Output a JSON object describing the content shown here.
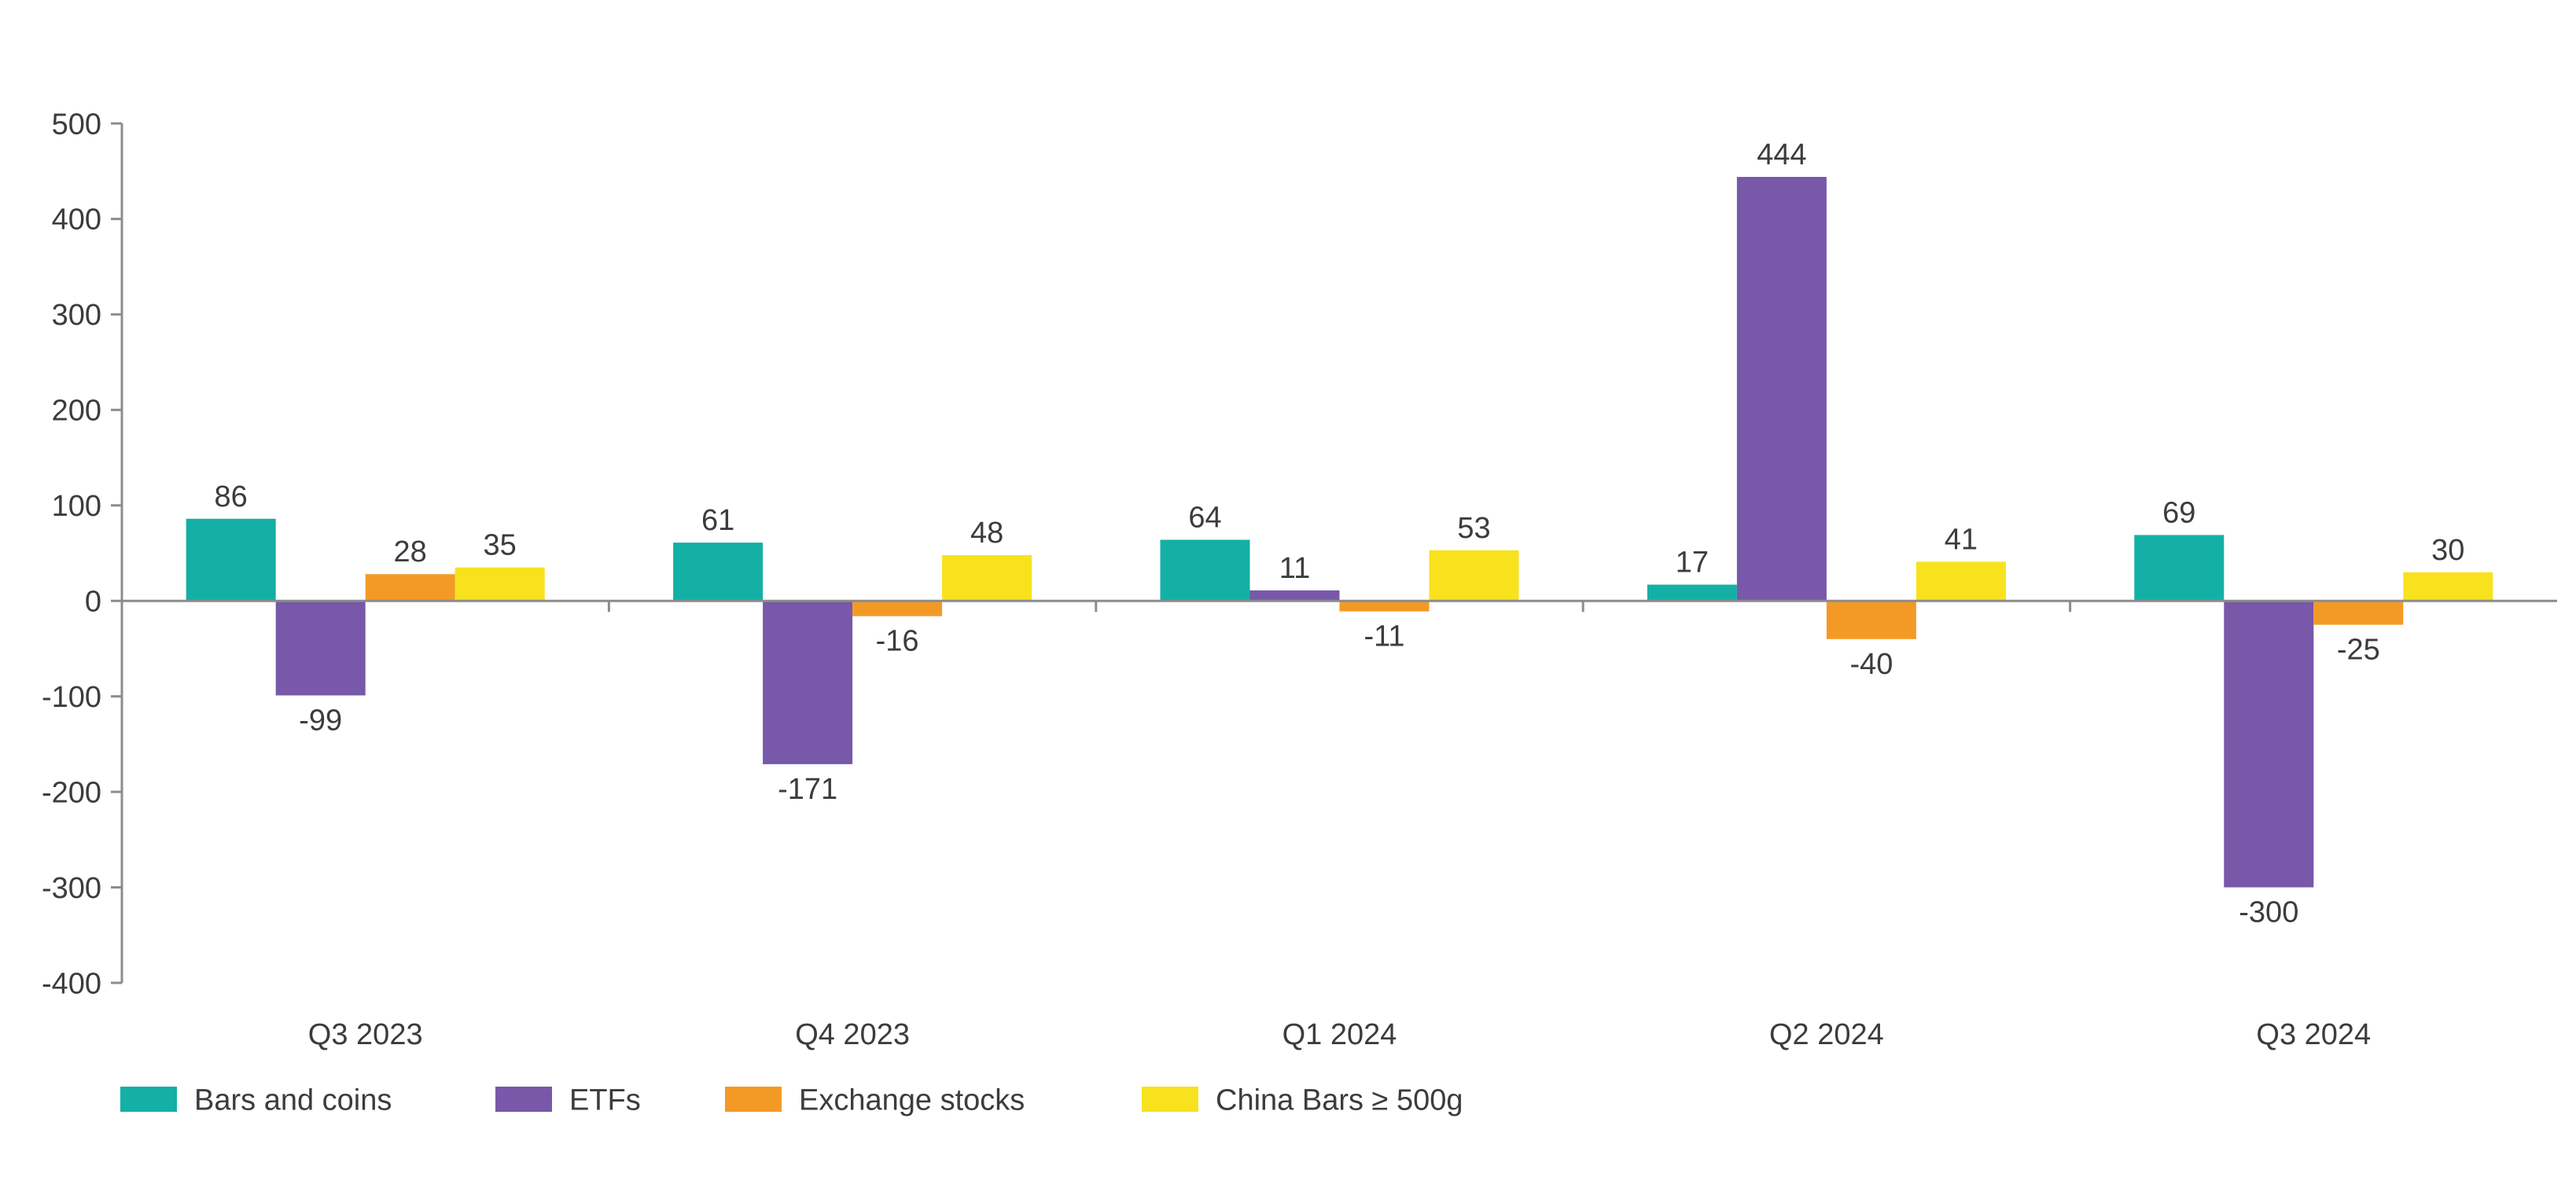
{
  "chart_data": {
    "type": "bar",
    "title": "",
    "xlabel": "",
    "ylabel": "",
    "categories": [
      "Q3 2023",
      "Q4 2023",
      "Q1 2024",
      "Q2 2024",
      "Q3 2024"
    ],
    "series": [
      {
        "name": "Bars and coins",
        "color": "#14b0a5",
        "values": [
          86,
          61,
          64,
          17,
          69
        ]
      },
      {
        "name": "ETFs",
        "color": "#7858a8",
        "values": [
          -99,
          -171,
          11,
          444,
          -300
        ]
      },
      {
        "name": "Exchange stocks",
        "color": "#f39a26",
        "values": [
          28,
          -16,
          -11,
          -40,
          -25
        ]
      },
      {
        "name": "China Bars ≥ 500g",
        "color": "#f8e21d",
        "values": [
          35,
          48,
          53,
          41,
          30
        ]
      }
    ],
    "data_labels": [
      [
        "86",
        "61",
        "64",
        "17",
        "69"
      ],
      [
        "-99",
        "-171",
        "11",
        "444",
        "-300"
      ],
      [
        "28",
        "-16",
        "-11",
        "-40",
        "-25"
      ],
      [
        "35",
        "48",
        "53",
        "41",
        "30"
      ]
    ],
    "ylim": [
      -400,
      500
    ],
    "yticks": [
      500,
      400,
      300,
      200,
      100,
      0,
      -100,
      -200,
      -300,
      -400
    ],
    "ytick_labels": [
      "500",
      "400",
      "300",
      "200",
      "100",
      "0",
      "-100",
      "-200",
      "-300",
      "-400"
    ],
    "grid": false,
    "legend_position": "bottom-left"
  }
}
